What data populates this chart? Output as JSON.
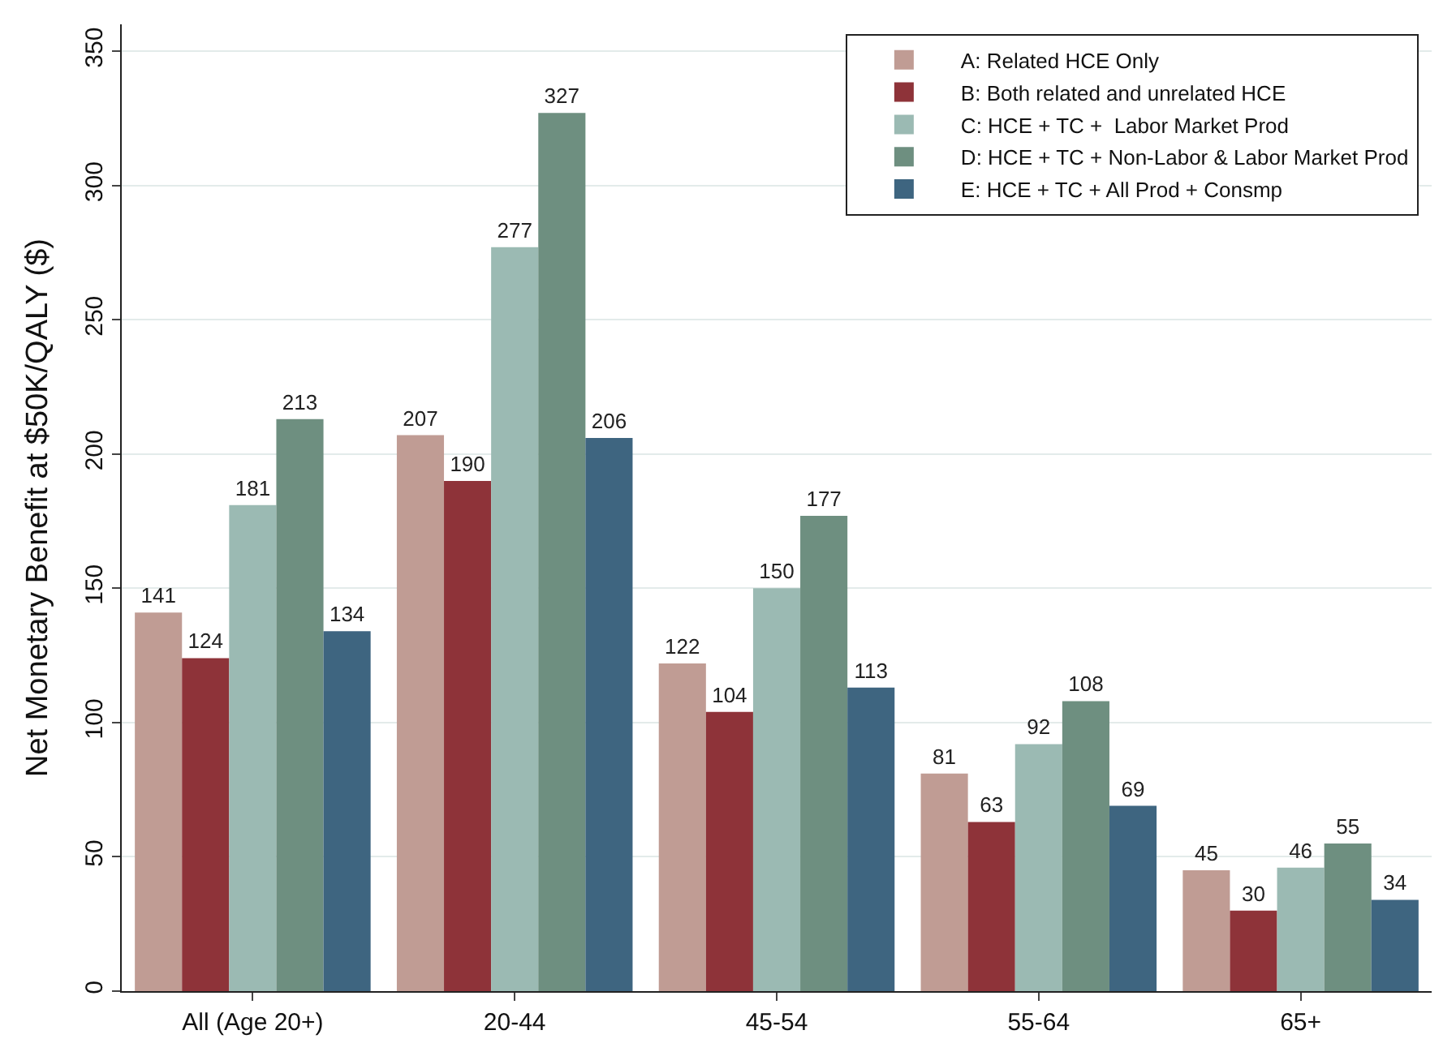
{
  "chart_data": {
    "type": "bar",
    "ylabel": "Net Monetary Benefit at $50K/QALY ($)",
    "categories": [
      "All (Age 20+)",
      "20-44",
      "45-54",
      "55-64",
      "65+"
    ],
    "series": [
      {
        "name": "A: Related HCE Only",
        "color": "#c09c94",
        "values": [
          141,
          207,
          122,
          81,
          45
        ]
      },
      {
        "name": "B: Both related and unrelated HCE",
        "color": "#8e3339",
        "values": [
          124,
          190,
          104,
          63,
          30
        ]
      },
      {
        "name": "C: HCE + TC +  Labor Market Prod",
        "color": "#9bbab3",
        "values": [
          181,
          277,
          150,
          92,
          46
        ]
      },
      {
        "name": "D: HCE + TC + Non-Labor & Labor Market Prod",
        "color": "#6e8f80",
        "values": [
          213,
          327,
          177,
          108,
          55
        ]
      },
      {
        "name": "E: HCE + TC + All Prod + Consmp",
        "color": "#3e6580",
        "values": [
          134,
          206,
          113,
          69,
          34
        ]
      }
    ],
    "ylim": [
      0,
      360
    ],
    "yticks": [
      0,
      50,
      100,
      150,
      200,
      250,
      300,
      350
    ],
    "grid": "y",
    "legend": "top right",
    "data_labels": true
  }
}
